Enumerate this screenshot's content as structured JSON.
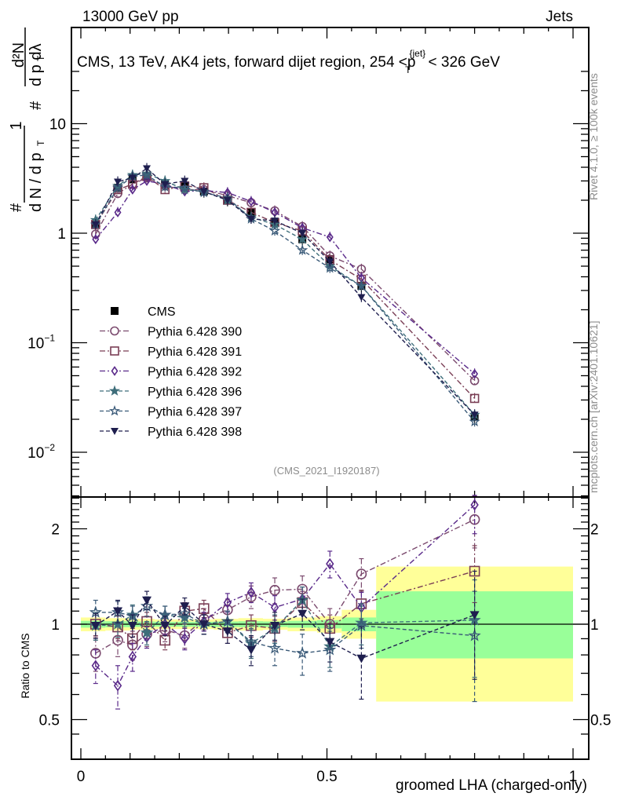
{
  "header": {
    "left": "13000 GeV pp",
    "right": "Jets"
  },
  "side_labels": {
    "rivet": "Rivet 4.1.0, ≥ 100k events",
    "mcplots": "mcplots.cern.ch [arXiv:2401.10621]"
  },
  "chart_data": [
    {
      "type": "line",
      "panel": "main",
      "title": "CMS, 13 TeV, AK4 jets, forward dijet region, 254 <p_T^{jet}< 326 GeV",
      "ylabel": "1/(dN/dp_T) d²N/(dp_T dλ)",
      "ylabel_parts": {
        "num1": "1",
        "den1": "d N / d p",
        "num2": "d²N",
        "den2": "d p   dλ",
        "hash": "#",
        "sub": "T"
      },
      "yscale": "log",
      "ylim": [
        0.004,
        30
      ],
      "y_ticks": [
        {
          "value": 0.01,
          "label": "10",
          "exp": "−2"
        },
        {
          "value": 0.1,
          "label": "10",
          "exp": "−1"
        },
        {
          "value": 1,
          "label": "1",
          "exp": ""
        },
        {
          "value": 10,
          "label": "10",
          "exp": ""
        }
      ],
      "xlim": [
        -0.02,
        1.03
      ],
      "watermark": "(CMS_2021_I1920187)",
      "legend_position": "center-left",
      "x": [
        0.03,
        0.075,
        0.105,
        0.134,
        0.171,
        0.211,
        0.25,
        0.298,
        0.346,
        0.394,
        0.45,
        0.506,
        0.57,
        0.8
      ],
      "series": [
        {
          "name": "CMS",
          "marker": "square-filled",
          "color": "#000000",
          "line": "none",
          "values": [
            1.2,
            2.6,
            3.1,
            3.3,
            2.8,
            2.7,
            2.4,
            2.0,
            1.55,
            1.25,
            0.88,
            0.58,
            0.33,
            0.021
          ]
        },
        {
          "name": "Pythia 6.428 390",
          "marker": "circle-open",
          "color": "#7b4a6e",
          "line": "dashdot",
          "values": [
            0.98,
            2.3,
            2.8,
            3.2,
            2.7,
            2.5,
            2.5,
            2.2,
            1.9,
            1.6,
            1.15,
            0.62,
            0.47,
            0.045
          ]
        },
        {
          "name": "Pythia 6.428 391",
          "marker": "square-open",
          "color": "#7a3e55",
          "line": "dashdot",
          "values": [
            1.2,
            2.5,
            2.8,
            3.3,
            2.5,
            2.7,
            2.6,
            2.0,
            1.55,
            1.25,
            1.05,
            0.57,
            0.38,
            0.031
          ]
        },
        {
          "name": "Pythia 6.428 392",
          "marker": "diamond-open",
          "color": "#5a2a8a",
          "line": "dashdot",
          "values": [
            0.88,
            1.55,
            2.5,
            3.0,
            2.8,
            2.4,
            2.45,
            2.35,
            1.95,
            1.55,
            1.12,
            0.92,
            0.39,
            0.052
          ]
        },
        {
          "name": "Pythia 6.428 396",
          "marker": "star-filled",
          "color": "#3e6e7a",
          "line": "dashed",
          "values": [
            1.32,
            2.7,
            3.4,
            3.5,
            3.0,
            2.5,
            2.4,
            2.0,
            1.4,
            1.2,
            0.88,
            0.5,
            0.33,
            0.022
          ]
        },
        {
          "name": "Pythia 6.428 397",
          "marker": "star-open",
          "color": "#3a5a78",
          "line": "dashed",
          "values": [
            1.2,
            2.6,
            3.3,
            3.4,
            2.65,
            2.6,
            2.35,
            2.1,
            1.35,
            1.05,
            0.7,
            0.48,
            0.33,
            0.019
          ]
        },
        {
          "name": "Pythia 6.428 398",
          "marker": "triangle-down-filled",
          "color": "#1e1e4e",
          "line": "dashed",
          "values": [
            1.2,
            2.95,
            3.2,
            3.9,
            2.8,
            3.0,
            2.4,
            2.0,
            1.35,
            1.3,
            1.0,
            0.55,
            0.26,
            0.022
          ]
        }
      ]
    },
    {
      "type": "line",
      "panel": "ratio",
      "ylabel": "Ratio to CMS",
      "xlabel": "groomed LHA (charged-only)",
      "yscale": "log",
      "ylim": [
        0.4,
        2.55
      ],
      "y_ticks": [
        {
          "value": 0.5,
          "label": "0.5"
        },
        {
          "value": 1,
          "label": "1"
        },
        {
          "value": 2,
          "label": "2"
        }
      ],
      "x_ticks": [
        {
          "value": 0,
          "label": "0"
        },
        {
          "value": 0.5,
          "label": "0.5"
        },
        {
          "value": 1,
          "label": "1"
        }
      ],
      "xlim": [
        -0.02,
        1.03
      ],
      "bands": {
        "bin_edges": [
          0.0,
          0.05,
          0.1,
          0.12,
          0.15,
          0.19,
          0.23,
          0.27,
          0.32,
          0.37,
          0.42,
          0.48,
          0.53,
          0.6,
          1.0
        ],
        "yellow_color": "#ffff99",
        "green_color": "#99ff99",
        "yellow_lo": [
          0.95,
          0.955,
          0.96,
          0.96,
          0.965,
          0.965,
          0.965,
          0.96,
          0.955,
          0.96,
          0.95,
          0.94,
          0.9,
          0.57
        ],
        "yellow_hi": [
          1.05,
          1.045,
          1.04,
          1.04,
          1.035,
          1.035,
          1.035,
          1.04,
          1.045,
          1.04,
          1.05,
          1.06,
          1.11,
          1.52
        ],
        "green_lo": [
          0.975,
          0.978,
          0.98,
          0.98,
          0.982,
          0.982,
          0.982,
          0.98,
          0.978,
          0.98,
          0.975,
          0.97,
          0.95,
          0.78
        ],
        "green_hi": [
          1.025,
          1.022,
          1.02,
          1.02,
          1.018,
          1.018,
          1.018,
          1.02,
          1.022,
          1.02,
          1.025,
          1.03,
          1.05,
          1.27
        ]
      },
      "x": [
        0.03,
        0.075,
        0.105,
        0.134,
        0.171,
        0.211,
        0.25,
        0.298,
        0.346,
        0.394,
        0.45,
        0.506,
        0.57,
        0.8
      ],
      "series": [
        {
          "name": "Pythia 6.428 390",
          "color": "#7b4a6e",
          "line": "dashdot",
          "marker": "circle-open",
          "values": [
            0.81,
            0.89,
            0.86,
            0.93,
            0.96,
            0.92,
            1.04,
            1.11,
            1.22,
            1.28,
            1.29,
            1.0,
            1.44,
            2.14
          ],
          "err": [
            0.1,
            0.1,
            0.09,
            0.08,
            0.08,
            0.08,
            0.08,
            0.09,
            0.1,
            0.12,
            0.13,
            0.12,
            0.17,
            0.4
          ]
        },
        {
          "name": "Pythia 6.428 391",
          "color": "#7a3e55",
          "line": "dashdot",
          "marker": "square-open",
          "values": [
            1.0,
            0.98,
            0.9,
            1.02,
            0.89,
            1.1,
            1.12,
            0.94,
            0.99,
            0.97,
            1.17,
            0.97,
            1.16,
            1.47
          ],
          "err": [
            0.08,
            0.08,
            0.07,
            0.07,
            0.06,
            0.07,
            0.07,
            0.07,
            0.08,
            0.09,
            0.1,
            0.1,
            0.12,
            0.3
          ]
        },
        {
          "name": "Pythia 6.428 392",
          "color": "#5a2a8a",
          "line": "dashdot",
          "marker": "diamond-open",
          "values": [
            0.74,
            0.64,
            0.79,
            0.91,
            1.0,
            0.9,
            1.02,
            1.17,
            1.26,
            1.13,
            1.2,
            1.55,
            1.13,
            2.38
          ],
          "err": [
            0.09,
            0.1,
            0.08,
            0.07,
            0.07,
            0.07,
            0.07,
            0.08,
            0.09,
            0.1,
            0.11,
            0.15,
            0.13,
            0.45
          ]
        },
        {
          "name": "Pythia 6.428 396",
          "color": "#3e6e7a",
          "line": "dashed",
          "marker": "star-filled",
          "values": [
            0.99,
            1.0,
            1.07,
            0.94,
            1.07,
            1.05,
            1.0,
            1.02,
            0.87,
            0.97,
            1.19,
            0.85,
            1.01,
            1.03
          ],
          "err": [
            0.1,
            0.09,
            0.08,
            0.08,
            0.07,
            0.07,
            0.07,
            0.08,
            0.09,
            0.1,
            0.12,
            0.12,
            0.15,
            0.35
          ]
        },
        {
          "name": "Pythia 6.428 397",
          "color": "#3a5a78",
          "line": "dashed",
          "marker": "star-open",
          "values": [
            1.09,
            1.09,
            1.06,
            1.14,
            1.07,
            1.08,
            1.0,
            1.02,
            0.88,
            0.84,
            0.81,
            0.83,
            0.99,
            0.92
          ],
          "err": [
            0.1,
            0.09,
            0.08,
            0.08,
            0.07,
            0.07,
            0.07,
            0.08,
            0.09,
            0.1,
            0.12,
            0.12,
            0.15,
            0.35
          ]
        },
        {
          "name": "Pythia 6.428 398",
          "color": "#1e1e4e",
          "line": "dashed",
          "marker": "triangle-down-filled",
          "values": [
            0.99,
            1.1,
            0.99,
            1.19,
            0.99,
            1.14,
            1.0,
            0.95,
            0.83,
            0.99,
            1.08,
            0.88,
            0.78,
            1.07
          ],
          "err": [
            0.09,
            0.09,
            0.08,
            0.08,
            0.07,
            0.07,
            0.07,
            0.08,
            0.09,
            0.1,
            0.12,
            0.12,
            0.2,
            0.4
          ]
        }
      ]
    }
  ]
}
